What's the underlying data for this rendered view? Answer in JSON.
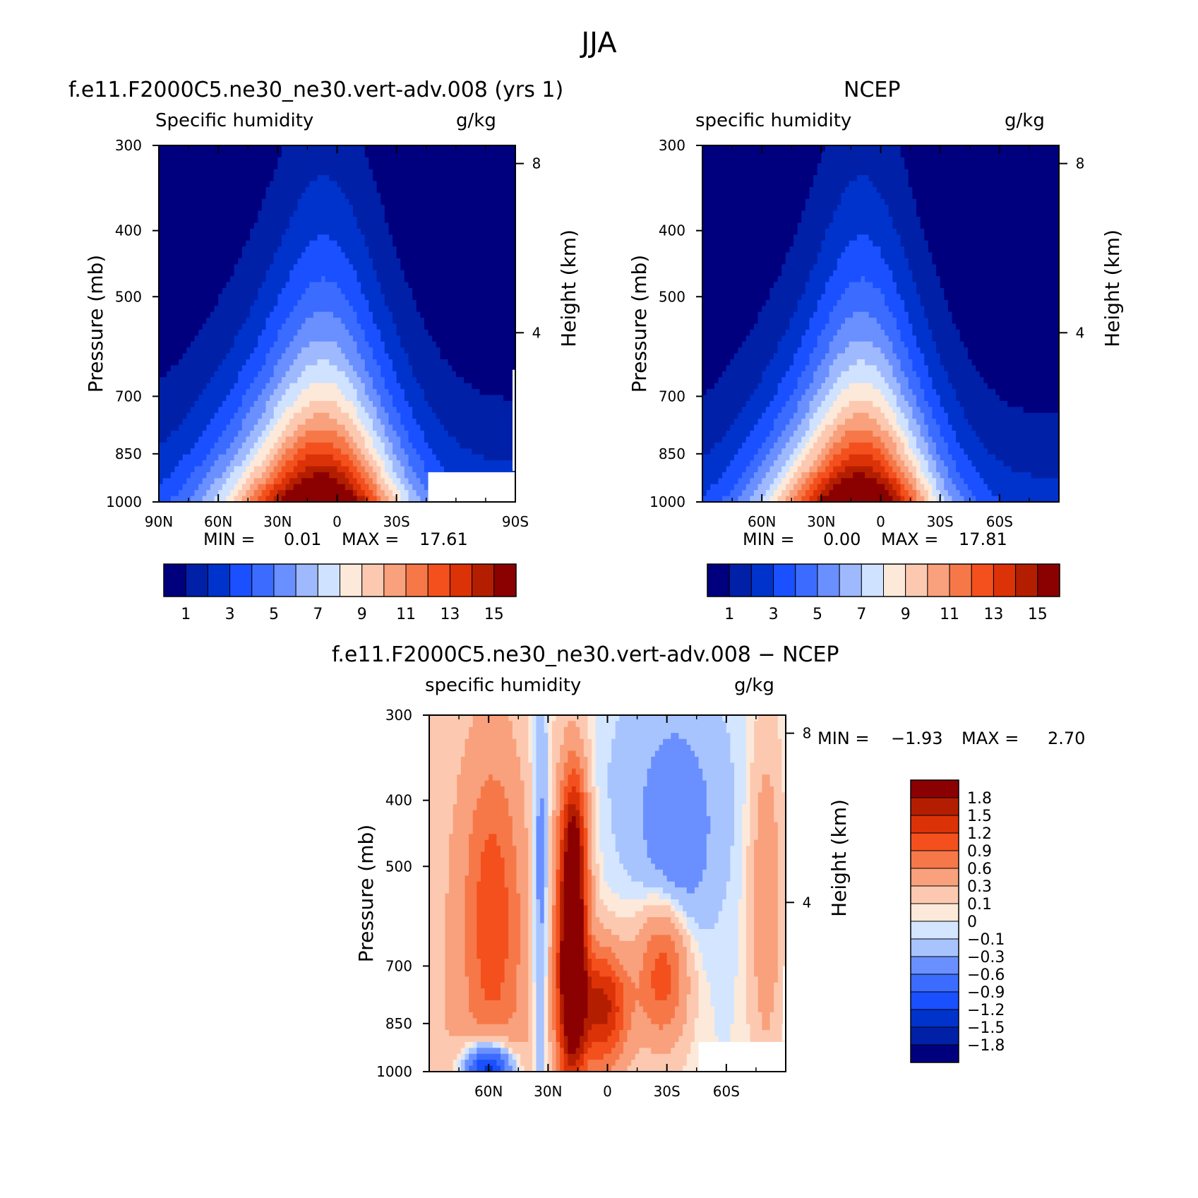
{
  "figure_title": "JJA",
  "chart_data": [
    {
      "type": "heatmap",
      "title": "f.e11.F2000C5.ne30_ne30.vert-adv.008 (yrs 1)",
      "left_label": "Specific humidity",
      "right_label": "g/kg",
      "ylabel": "Pressure (mb)",
      "y2label": "Height (km)",
      "x_ticks": [
        "90N",
        "60N",
        "30N",
        "0",
        "30S",
        "90S"
      ],
      "x_tick_values": [
        90,
        60,
        30,
        0,
        -30,
        -90
      ],
      "xlim": [
        90,
        -90
      ],
      "y_ticks": [
        "300",
        "400",
        "500",
        "700",
        "850",
        "1000"
      ],
      "y_tick_values": [
        300,
        400,
        500,
        700,
        850,
        1000
      ],
      "ylim": [
        1000,
        300
      ],
      "yscale": "log",
      "y2_ticks": [
        "8",
        "4"
      ],
      "min_label": "MIN =",
      "min": "0.01",
      "max_label": "MAX =",
      "max": "17.61",
      "levels": [
        1,
        2,
        3,
        4,
        5,
        6,
        7,
        8,
        9,
        10,
        11,
        12,
        13,
        14,
        15
      ],
      "colorbar_labels": [
        "1",
        "3",
        "5",
        "7",
        "9",
        "11",
        "13",
        "15"
      ],
      "colorbar": "horizontal",
      "peak_lat": 8,
      "peak_value": 17.61,
      "missing_south_of": -45
    },
    {
      "type": "heatmap",
      "title": "NCEP",
      "left_label": "specific humidity",
      "right_label": "g/kg",
      "ylabel": "Pressure (mb)",
      "y2label": "Height (km)",
      "x_ticks": [
        "60N",
        "30N",
        "0",
        "30S",
        "60S"
      ],
      "x_tick_values": [
        60,
        30,
        0,
        -30,
        -60
      ],
      "xlim": [
        90,
        -90
      ],
      "y_ticks": [
        "300",
        "400",
        "500",
        "700",
        "850",
        "1000"
      ],
      "y_tick_values": [
        300,
        400,
        500,
        700,
        850,
        1000
      ],
      "ylim": [
        1000,
        300
      ],
      "yscale": "log",
      "y2_ticks": [
        "8",
        "4"
      ],
      "min_label": "MIN =",
      "min": "0.00",
      "max_label": "MAX =",
      "max": "17.81",
      "levels": [
        1,
        2,
        3,
        4,
        5,
        6,
        7,
        8,
        9,
        10,
        11,
        12,
        13,
        14,
        15
      ],
      "colorbar_labels": [
        "1",
        "3",
        "5",
        "7",
        "9",
        "11",
        "13",
        "15"
      ],
      "colorbar": "horizontal",
      "peak_lat": 10,
      "peak_value": 17.81
    },
    {
      "type": "heatmap",
      "title": "f.e11.F2000C5.ne30_ne30.vert-adv.008 − NCEP",
      "left_label": "specific humidity",
      "right_label": "g/kg",
      "ylabel": "Pressure (mb)",
      "y2label": "Height (km)",
      "x_ticks": [
        "60N",
        "30N",
        "0",
        "30S",
        "60S"
      ],
      "x_tick_values": [
        60,
        30,
        0,
        -30,
        -60
      ],
      "xlim": [
        90,
        -90
      ],
      "y_ticks": [
        "300",
        "400",
        "500",
        "700",
        "850",
        "1000"
      ],
      "y_tick_values": [
        300,
        400,
        500,
        700,
        850,
        1000
      ],
      "ylim": [
        1000,
        300
      ],
      "yscale": "log",
      "y2_ticks": [
        "8",
        "4"
      ],
      "min_label": "MIN =",
      "min": "−1.93",
      "max_label": "MAX =",
      "max": "2.70",
      "levels": [
        -1.8,
        -1.5,
        -1.2,
        -0.9,
        -0.6,
        -0.3,
        -0.1,
        0,
        0.1,
        0.3,
        0.6,
        0.9,
        1.2,
        1.5,
        1.8
      ],
      "colorbar_labels": [
        "1.8",
        "1.5",
        "1.2",
        "0.9",
        "0.6",
        "0.3",
        "0.1",
        "0",
        "−0.1",
        "−0.3",
        "−0.6",
        "−0.9",
        "−1.2",
        "−1.5",
        "−1.8"
      ],
      "colorbar": "vertical",
      "missing_south_of": -45
    }
  ],
  "colors": {
    "seq": [
      "#00007f",
      "#0020a8",
      "#0033cc",
      "#1a50ff",
      "#3b6cff",
      "#6a8fff",
      "#9fb9ff",
      "#cfe2ff",
      "#fde9da",
      "#fcc9b0",
      "#f9a07c",
      "#f67848",
      "#f3501e",
      "#dc3208",
      "#b41e00",
      "#8b0000"
    ],
    "diff": [
      "#00007f",
      "#0020a8",
      "#0033cc",
      "#1a50ff",
      "#3b6cff",
      "#6a8fff",
      "#a8c4ff",
      "#d4e6ff",
      "#fde9da",
      "#fcc9b0",
      "#f9a07c",
      "#f67848",
      "#f3501e",
      "#dc3208",
      "#b41e00",
      "#8b0000"
    ]
  }
}
